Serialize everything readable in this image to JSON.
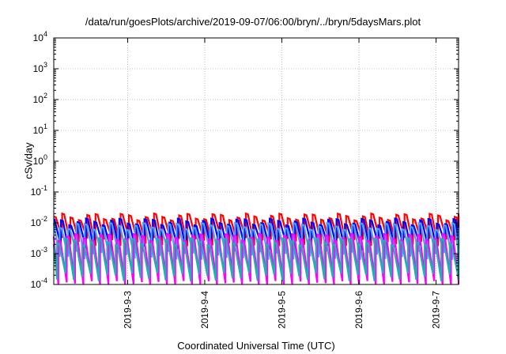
{
  "chart_data": {
    "type": "line",
    "title": "/data/run/goesPlots/archive/2019-09-07/06:00/bryn/../bryn/5daysMars.plot",
    "xlabel": "Coordinated Universal Time (UTC)",
    "ylabel": "cSv/day",
    "y_scale": "log",
    "ylim": [
      0.0001,
      10000
    ],
    "xlim": [
      "2019-09-02 01:00",
      "2019-09-07 07:00"
    ],
    "grid": true,
    "x_ticks": [
      "2019-9-3",
      "2019-9-4",
      "2019-9-5",
      "2019-9-6",
      "2019-9-7"
    ],
    "y_ticks": [
      {
        "base": "10",
        "exp": "-4",
        "value": 0.0001
      },
      {
        "base": "10",
        "exp": "-3",
        "value": 0.001
      },
      {
        "base": "10",
        "exp": "-2",
        "value": 0.01
      },
      {
        "base": "10",
        "exp": "-1",
        "value": 0.1
      },
      {
        "base": "10",
        "exp": "0",
        "value": 1
      },
      {
        "base": "10",
        "exp": "1",
        "value": 10
      },
      {
        "base": "10",
        "exp": "2",
        "value": 100
      },
      {
        "base": "10",
        "exp": "3",
        "value": 1000
      },
      {
        "base": "10",
        "exp": "4",
        "value": 10000
      }
    ],
    "sawtooth_period_hours": 2.6,
    "series": [
      {
        "color": "#ff0000",
        "peak": 0.016,
        "trough": 0.0025,
        "phase": 0.0
      },
      {
        "color": "#0000ff",
        "peak": 0.011,
        "trough": 0.0015,
        "phase": 0.15
      },
      {
        "color": "#4aa0ff",
        "peak": 0.008,
        "trough": 0.0009,
        "phase": 0.3
      },
      {
        "color": "#ff00ff",
        "peak": 0.0035,
        "trough": 0.0001,
        "phase": 0.45
      },
      {
        "color": "#20b0b0",
        "peak": 0.0025,
        "trough": 0.00018,
        "phase": 0.6
      }
    ]
  }
}
